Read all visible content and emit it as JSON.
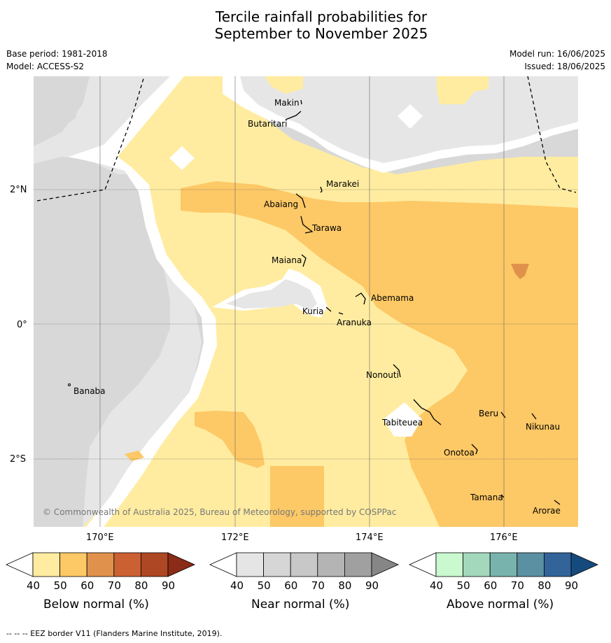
{
  "title_line1": "Tercile rainfall probabilities for",
  "title_line2": "September to November 2025",
  "base_period": "Base period: 1981-2018",
  "model": "Model: ACCESS-S2",
  "model_run": "Model run: 16/06/2025",
  "issued": "Issued: 18/06/2025",
  "copyright": "© Commonwealth of Australia 2025, Bureau of Meteorology, supported by COSPPac",
  "footer": "--  --  -- EEZ border V11 (Flanders Marine Institute, 2019).",
  "lat_labels": [
    "2°N",
    "0°",
    "2°S"
  ],
  "lon_labels": [
    "170°E",
    "172°E",
    "174°E",
    "176°E"
  ],
  "places": [
    "Makin",
    "Butaritari",
    "Marakei",
    "Abaiang",
    "Tarawa",
    "Maiana",
    "Abemama",
    "Kuria",
    "Aranuka",
    "Nonouti",
    "Banaba",
    "Beru",
    "Nikunau",
    "Tabiteuea",
    "Onotoa",
    "Tamana",
    "Arorae"
  ],
  "colorbars": [
    {
      "label": "Below normal (%)",
      "ticks": [
        "40",
        "50",
        "60",
        "70",
        "80",
        "90"
      ],
      "colors": [
        "#ffffff",
        "#ffeca0",
        "#fdc866",
        "#e0924c",
        "#cb6032",
        "#ae4724",
        "#8a2c17"
      ]
    },
    {
      "label": "Near normal (%)",
      "ticks": [
        "40",
        "50",
        "60",
        "70",
        "80",
        "90"
      ],
      "colors": [
        "#ffffff",
        "#e5e5e5",
        "#d6d6d6",
        "#c8c8c8",
        "#b4b4b4",
        "#a0a0a0",
        "#868686"
      ]
    },
    {
      "label": "Above normal (%)",
      "ticks": [
        "40",
        "50",
        "60",
        "70",
        "80",
        "90"
      ],
      "colors": [
        "#ffffff",
        "#caf8cf",
        "#a4d8bd",
        "#78b4ad",
        "#5a90a1",
        "#32649a",
        "#154a7d"
      ]
    }
  ]
}
